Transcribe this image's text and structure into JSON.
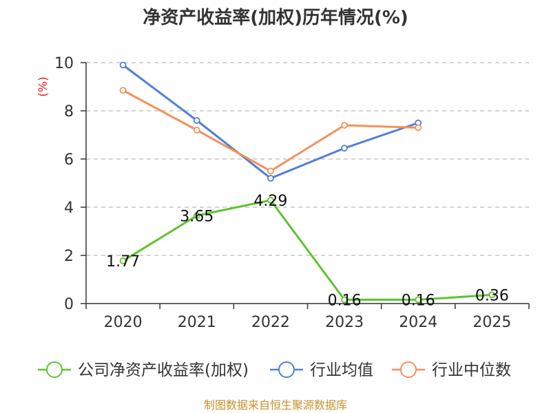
{
  "chart_data": {
    "type": "line",
    "title": "净资产收益率(加权)历年情况(%)",
    "ylabel": "(%)",
    "xlabel": "",
    "categories": [
      "2020",
      "2021",
      "2022",
      "2023",
      "2024",
      "2025"
    ],
    "ylim": [
      0,
      10
    ],
    "yticks": [
      0,
      2,
      4,
      6,
      8,
      10
    ],
    "grid": true,
    "legend_position": "bottom",
    "series": [
      {
        "name": "公司净资产收益率(加权)",
        "color": "#5cc42b",
        "values": [
          1.77,
          3.65,
          4.29,
          0.16,
          0.16,
          0.36
        ],
        "labels": [
          "1.77",
          "3.65",
          "4.29",
          "0.16",
          "0.16",
          "0.36"
        ]
      },
      {
        "name": "行业均值",
        "color": "#4f7fd8",
        "values": [
          9.9,
          7.6,
          5.2,
          6.45,
          7.5,
          null
        ]
      },
      {
        "name": "行业中位数",
        "color": "#f5905a",
        "values": [
          8.85,
          7.2,
          5.5,
          7.4,
          7.3,
          null
        ]
      }
    ],
    "source": "制图数据来自恒生聚源数据库"
  }
}
